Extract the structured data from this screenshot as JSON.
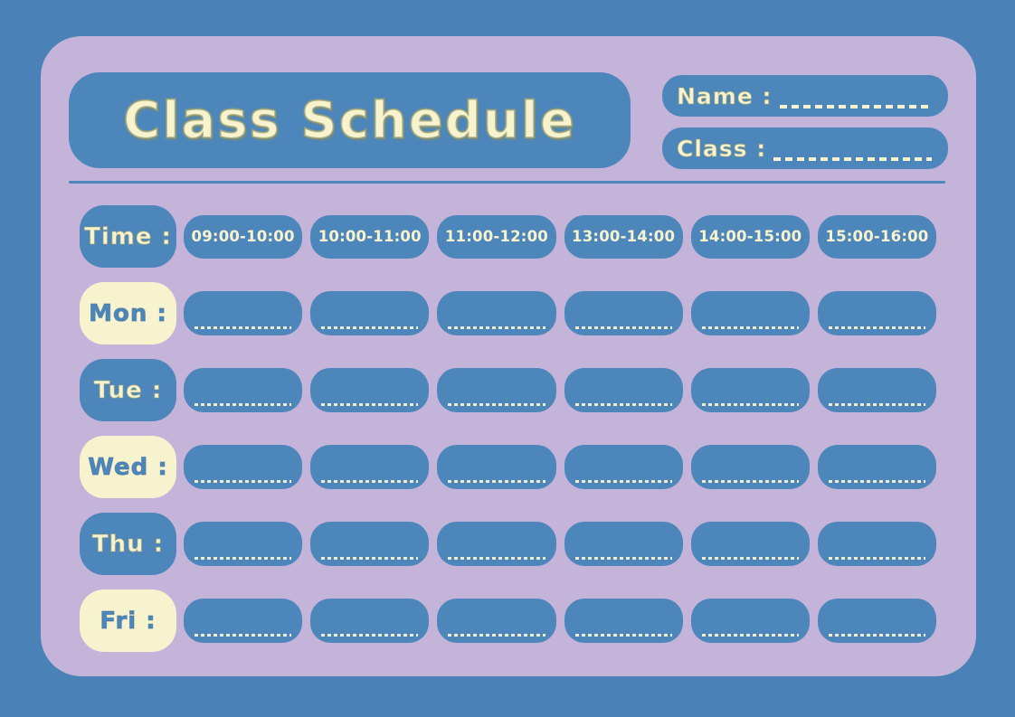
{
  "title": "Class Schedule",
  "header": {
    "name_label": "Name :",
    "class_label": "Class :"
  },
  "schedule": {
    "time_label": "Time :",
    "time_slots": [
      "09:00-10:00",
      "10:00-11:00",
      "11:00-12:00",
      "13:00-14:00",
      "14:00-15:00",
      "15:00-16:00"
    ],
    "days": [
      {
        "id": "mon",
        "label": "Mon :",
        "style": "cream"
      },
      {
        "id": "tue",
        "label": "Tue :",
        "style": "blue"
      },
      {
        "id": "wed",
        "label": "Wed :",
        "style": "cream"
      },
      {
        "id": "thu",
        "label": "Thu :",
        "style": "blue"
      },
      {
        "id": "fri",
        "label": "Fri :",
        "style": "cream"
      }
    ]
  },
  "colors": {
    "background_blue": "#4a81b7",
    "box_blue": "#4d86bb",
    "card_lavender": "#c4b4d9",
    "cream": "#f8f3cf"
  }
}
